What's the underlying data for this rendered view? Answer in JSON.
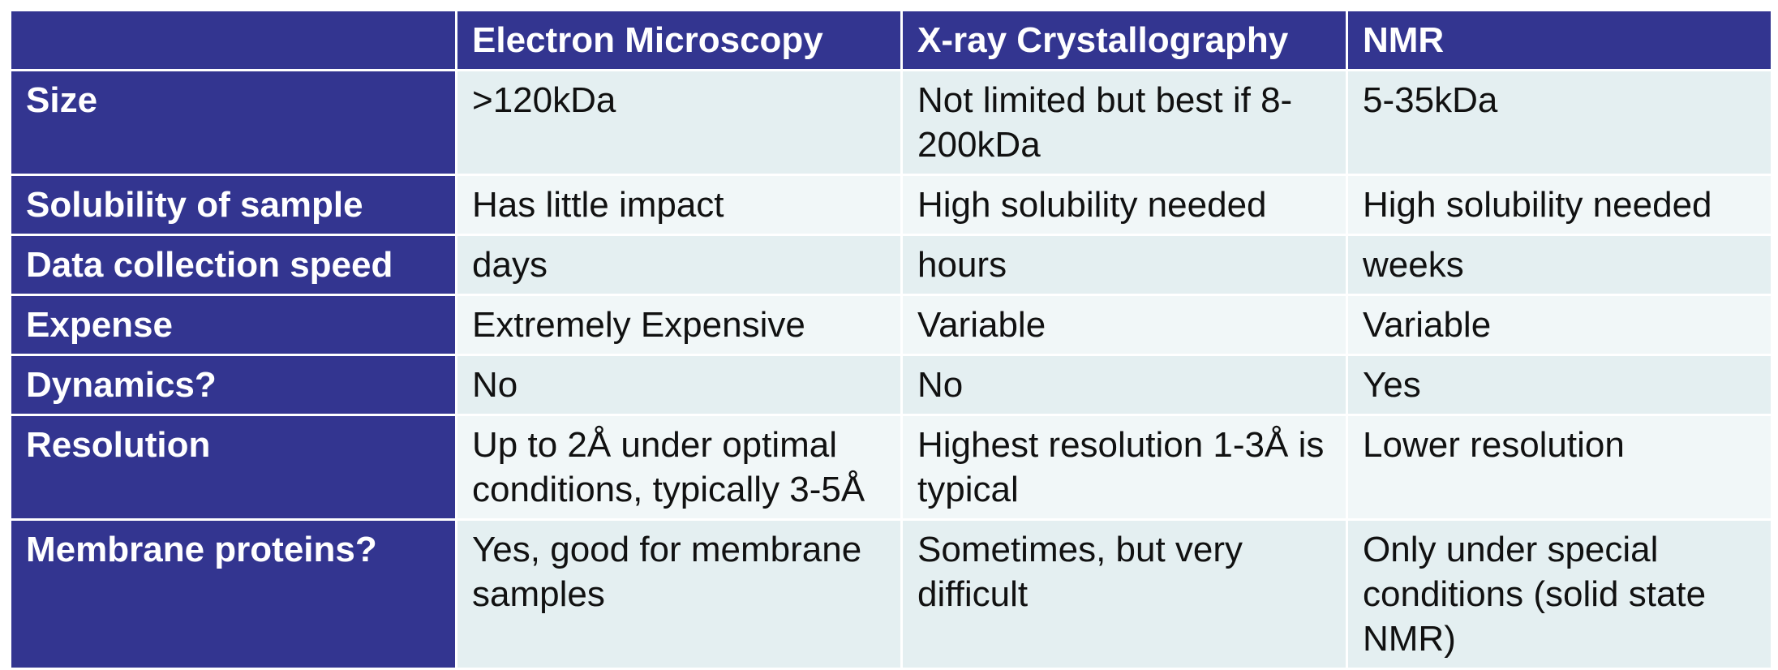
{
  "table": {
    "headers": [
      "",
      "Electron Microscopy",
      "X-ray Crystallography",
      "NMR"
    ],
    "rows": [
      [
        "Size",
        ">120kDa",
        "Not limited but best if 8-200kDa",
        "5-35kDa"
      ],
      [
        "Solubility of sample",
        "Has little impact",
        "High solubility needed",
        "High solubility needed"
      ],
      [
        "Data collection speed",
        "days",
        "hours",
        "weeks"
      ],
      [
        "Expense",
        "Extremely Expensive",
        "Variable",
        "Variable"
      ],
      [
        "Dynamics?",
        "No",
        "No",
        "Yes"
      ],
      [
        "Resolution",
        "Up to 2Å under optimal conditions, typically 3-5Å",
        "Highest resolution 1-3Å is typical",
        "Lower resolution"
      ],
      [
        "Membrane proteins?",
        "Yes, good for membrane samples",
        "Sometimes, but very difficult",
        "Only under special conditions (solid state NMR)"
      ]
    ]
  },
  "colors": {
    "header_bg": "#333590",
    "header_text": "#ffffff",
    "row_bg_odd": "#e4eff1",
    "row_bg_even": "#f1f7f8",
    "cell_text": "#111111"
  }
}
